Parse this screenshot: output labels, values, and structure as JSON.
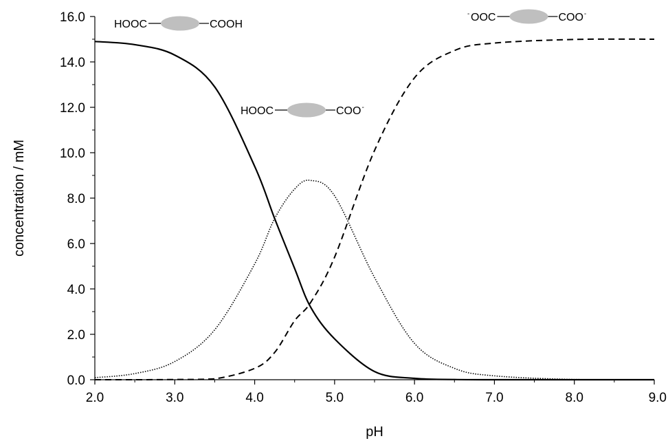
{
  "chart_data": {
    "type": "line",
    "xlabel": "pH",
    "ylabel": "concentration / mM",
    "xlim": [
      2.0,
      9.0
    ],
    "ylim": [
      0.0,
      16.0
    ],
    "x_ticks": [
      2.0,
      3.0,
      4.0,
      5.0,
      6.0,
      7.0,
      8.0,
      9.0
    ],
    "x_tick_labels": [
      "2.0",
      "3.0",
      "4.0",
      "5.0",
      "6.0",
      "7.0",
      "8.0",
      "9.0"
    ],
    "y_ticks": [
      0.0,
      2.0,
      4.0,
      6.0,
      8.0,
      10.0,
      12.0,
      14.0,
      16.0
    ],
    "y_tick_labels": [
      "0.0",
      "2.0",
      "4.0",
      "6.0",
      "8.0",
      "10.0",
      "12.0",
      "14.0",
      "16.0"
    ],
    "grid": false,
    "legend": "none",
    "series": [
      {
        "style": "solid",
        "color": "#000000",
        "x": [
          2.0,
          2.5,
          3.0,
          3.5,
          4.0,
          4.25,
          4.5,
          4.7,
          5.0,
          5.5,
          6.0,
          6.5,
          7.0,
          8.0,
          9.0
        ],
        "y": [
          14.9,
          14.76,
          14.3,
          12.9,
          9.4,
          7.1,
          4.9,
          3.2,
          1.8,
          0.36,
          0.06,
          0.01,
          0.0,
          0.0,
          0.0
        ]
      },
      {
        "style": "dotted",
        "color": "#000000",
        "x": [
          2.0,
          2.5,
          3.0,
          3.5,
          4.0,
          4.25,
          4.5,
          4.7,
          5.0,
          5.5,
          6.0,
          6.5,
          7.0,
          8.0,
          9.0
        ],
        "y": [
          0.09,
          0.27,
          0.8,
          2.2,
          5.1,
          7.1,
          8.4,
          8.78,
          8.1,
          4.5,
          1.6,
          0.5,
          0.17,
          0.01,
          0.0
        ],
        "peak": [
          4.7,
          8.78
        ]
      },
      {
        "style": "dashed",
        "color": "#000000",
        "x": [
          2.0,
          2.5,
          3.0,
          3.5,
          4.0,
          4.25,
          4.5,
          4.7,
          5.0,
          5.5,
          6.0,
          6.5,
          7.0,
          8.0,
          9.0
        ],
        "y": [
          0.0,
          0.0,
          0.01,
          0.04,
          0.5,
          1.2,
          2.6,
          3.4,
          5.4,
          10.1,
          13.3,
          14.5,
          14.83,
          14.99,
          15.0
        ]
      }
    ],
    "annotations": [
      {
        "kind": "species",
        "left": "HOOC",
        "right": "COOH",
        "left_superscript": "",
        "right_superscript": "",
        "fill": "#bfbfbf"
      },
      {
        "kind": "species",
        "left": "HOOC",
        "right": "COO",
        "left_superscript": "",
        "right_superscript": "-",
        "fill": "#bfbfbf"
      },
      {
        "kind": "species",
        "left": "OOC",
        "right": "COO",
        "left_superscript": "-",
        "right_superscript": "-",
        "fill": "#bfbfbf"
      }
    ]
  }
}
